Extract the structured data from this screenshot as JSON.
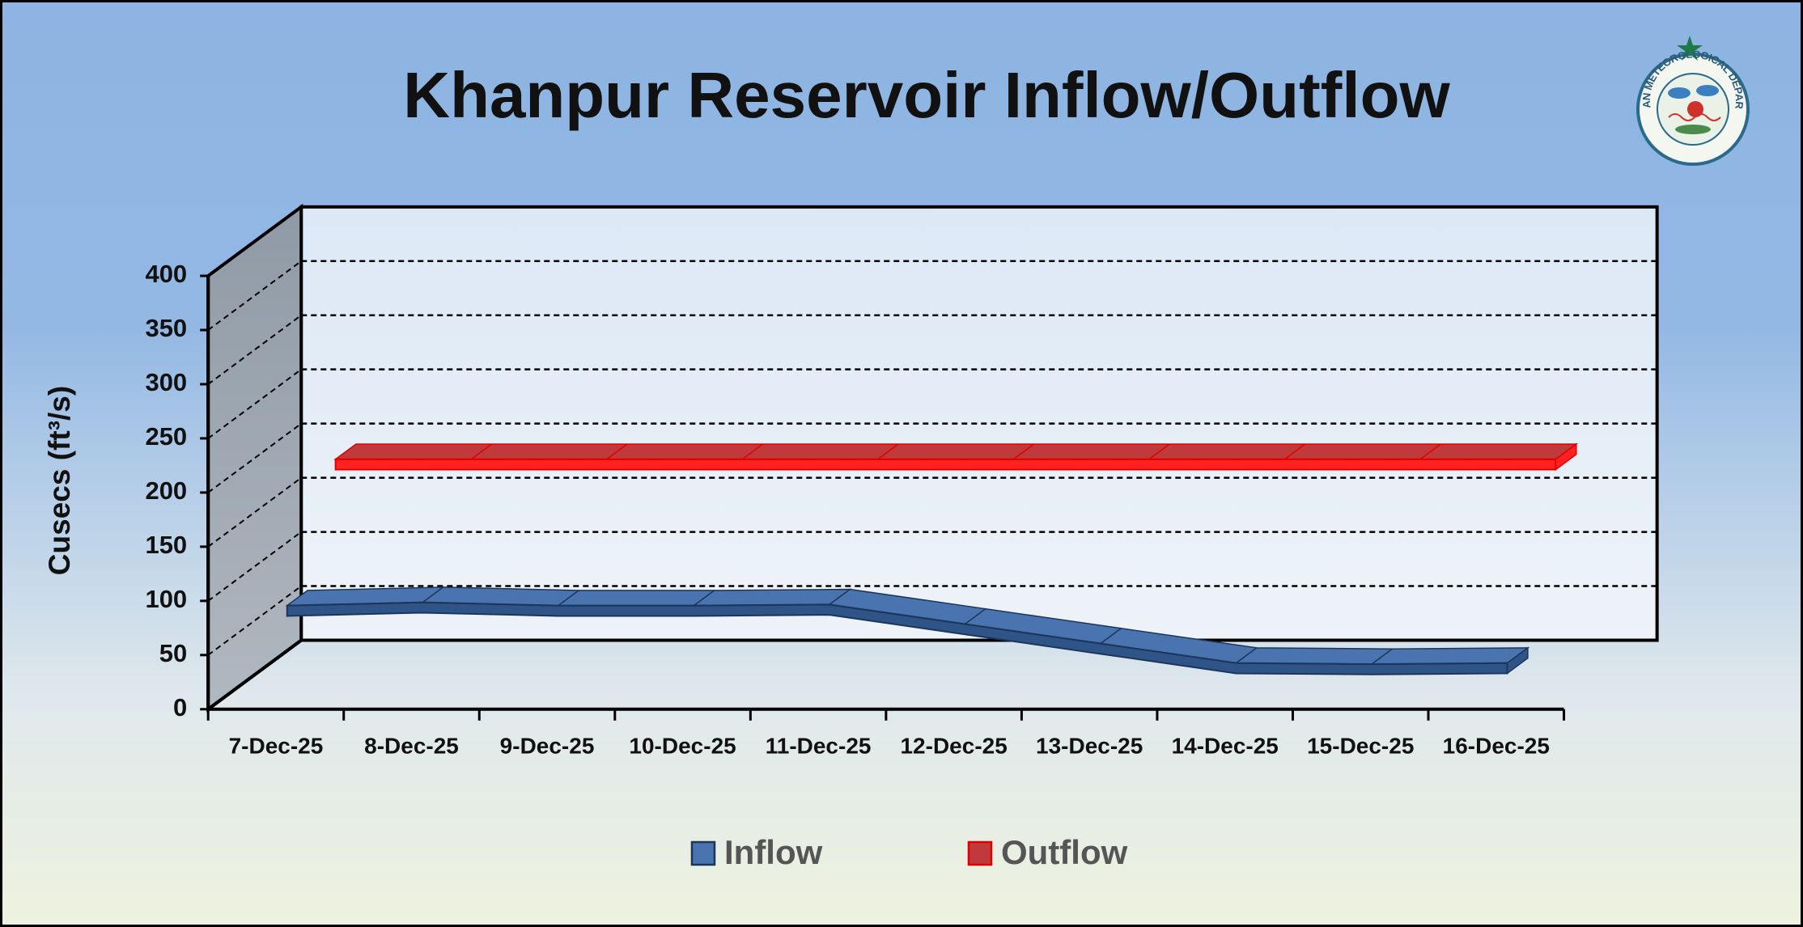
{
  "chart_data": {
    "type": "line",
    "title": "Khanpur Reservoir Inflow/Outflow",
    "y_label": "Cusecs (ft³/s)",
    "logo_text": "PAKISTAN METEOROLOGICAL DEPARTMENT",
    "categories": [
      "7-Dec-25",
      "8-Dec-25",
      "9-Dec-25",
      "10-Dec-25",
      "11-Dec-25",
      "12-Dec-25",
      "13-Dec-25",
      "14-Dec-25",
      "15-Dec-25",
      "16-Dec-25"
    ],
    "series": [
      {
        "name": "Inflow",
        "color": "#4a74b0",
        "values": [
          88,
          91,
          88,
          88,
          89,
          71,
          53,
          35,
          34,
          35
        ]
      },
      {
        "name": "Outflow",
        "color": "#c0393b",
        "values": [
          190,
          190,
          190,
          190,
          190,
          190,
          190,
          190,
          190,
          190
        ]
      }
    ],
    "ylim": [
      0,
      400
    ],
    "yticks": [
      0,
      50,
      100,
      150,
      200,
      250,
      300,
      350,
      400
    ],
    "grid": true,
    "legend": "bottom"
  }
}
